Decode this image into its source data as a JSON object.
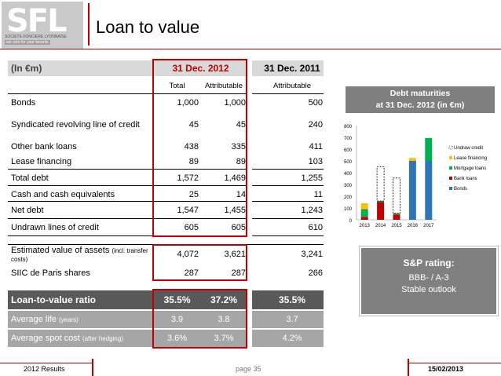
{
  "logo": {
    "text": "SFL",
    "sub": "SOCIETE FONCIERE LYONNAISE",
    "tag": "we care for your tenants"
  },
  "title": "Loan to value",
  "table": {
    "head_label": "(In €m)",
    "col_2012": "31 Dec. 2012",
    "col_2011": "31 Dec. 2011",
    "sub_total": "Total",
    "sub_attr": "Attributable",
    "sub_attr_2011": "Attributable",
    "rows": [
      {
        "label": "Bonds",
        "total": "1,000",
        "attr": "1,000",
        "attr2011": "500"
      },
      {
        "label": "Syndicated revolving line of credit",
        "total": "45",
        "attr": "45",
        "attr2011": "240"
      },
      {
        "label": "Other bank loans",
        "total": "438",
        "attr": "335",
        "attr2011": "411"
      },
      {
        "label": "Lease financing",
        "total": "89",
        "attr": "89",
        "attr2011": "103"
      },
      {
        "label": "Total debt",
        "total": "1,572",
        "attr": "1,469",
        "attr2011": "1,255"
      },
      {
        "label": "Cash and cash equivalents",
        "total": "25",
        "attr": "14",
        "attr2011": "11"
      },
      {
        "label": "Net debt",
        "total": "1,547",
        "attr": "1,455",
        "attr2011": "1,243"
      },
      {
        "label": "Undrawn lines of credit",
        "total": "605",
        "attr": "605",
        "attr2011": "610"
      }
    ],
    "assets": {
      "label": "Estimated value of assets",
      "label_small": "(incl. transfer costs)",
      "total": "4,072",
      "attr": "3,621",
      "attr2011": "3,241"
    },
    "siic": {
      "label": "SIIC de Paris shares",
      "total": "287",
      "attr": "287",
      "attr2011": "266"
    },
    "ltv": {
      "label": "Loan-to-value ratio",
      "total": "35.5%",
      "attr": "37.2%",
      "attr2011": "35.5%"
    },
    "life": {
      "label": "Average life",
      "label_small": "(years)",
      "total": "3.9",
      "attr": "3.8",
      "attr2011": "3.7"
    },
    "cost": {
      "label": "Average spot cost",
      "label_small": "(after hedging)",
      "total": "3.6%",
      "attr": "3.7%",
      "attr2011": "4.2%"
    }
  },
  "chart_box": {
    "line1": "Debt maturities",
    "line2": "at 31 Dec. 2012 (in €m)"
  },
  "sp": {
    "line1": "S&P rating:",
    "line2": "BBB-  / A-3",
    "line3": "Stable outlook"
  },
  "footer": {
    "left": "2012 Results",
    "center": "page 35",
    "right": "15/02/2013"
  },
  "colors": {
    "bonds": "#2e75b6",
    "bank": "#c00000",
    "mortgage": "#00b050",
    "lease": "#ffc000",
    "undrawn_border": "#000000"
  },
  "chart_data": {
    "type": "bar",
    "stacked": true,
    "categories": [
      "2013",
      "2014",
      "2015",
      "2016",
      "2017"
    ],
    "ylim": [
      0,
      800
    ],
    "yticks": [
      "0",
      "100",
      "200",
      "300",
      "400",
      "500",
      "600",
      "700",
      "800"
    ],
    "series": [
      {
        "name": "Bonds",
        "values": [
          0,
          0,
          0,
          500,
          500
        ]
      },
      {
        "name": "Bank loans",
        "values": [
          25,
          150,
          45,
          0,
          0
        ]
      },
      {
        "name": "Mortgage loans",
        "values": [
          65,
          10,
          10,
          0,
          195
        ]
      },
      {
        "name": "Lease financing",
        "values": [
          50,
          0,
          0,
          25,
          0
        ]
      },
      {
        "name": "Undraw credit",
        "values": [
          0,
          290,
          300,
          0,
          0
        ]
      }
    ]
  }
}
